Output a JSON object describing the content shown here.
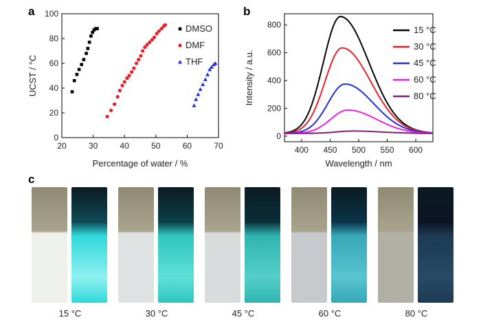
{
  "panels": {
    "a": "a",
    "b": "b",
    "c": "c"
  },
  "chart_data": [
    {
      "panel": "a",
      "type": "scatter",
      "xlabel": "Percentage of water / %",
      "ylabel": "UCST / °C",
      "xlim": [
        20,
        70
      ],
      "ylim": [
        0,
        100
      ],
      "xticks": [
        20,
        30,
        40,
        50,
        60,
        70
      ],
      "yticks": [
        0,
        20,
        40,
        60,
        80,
        100
      ],
      "legend_position": "top-right",
      "series": [
        {
          "name": "DMSO",
          "marker": "square",
          "color": "#000000",
          "points": [
            [
              23.3,
              37
            ],
            [
              24,
              46
            ],
            [
              24.8,
              51
            ],
            [
              25.5,
              55
            ],
            [
              26.3,
              59
            ],
            [
              27,
              63
            ],
            [
              27.8,
              68
            ],
            [
              28.3,
              72
            ],
            [
              28.8,
              77
            ],
            [
              29.3,
              82
            ],
            [
              29.8,
              85
            ],
            [
              30.3,
              87
            ],
            [
              30.8,
              88
            ],
            [
              31.3,
              88
            ]
          ]
        },
        {
          "name": "DMF",
          "marker": "circle",
          "color": "#e8202a",
          "points": [
            [
              34.5,
              17
            ],
            [
              35.7,
              22
            ],
            [
              36.8,
              27
            ],
            [
              37.8,
              33
            ],
            [
              38.5,
              38
            ],
            [
              39.3,
              42
            ],
            [
              40,
              45
            ],
            [
              40.8,
              48
            ],
            [
              41.5,
              50
            ],
            [
              42.3,
              53
            ],
            [
              43,
              56
            ],
            [
              43.8,
              60
            ],
            [
              44.5,
              63
            ],
            [
              45.2,
              66
            ],
            [
              45.8,
              70
            ],
            [
              46.5,
              73
            ],
            [
              47.2,
              75
            ],
            [
              48,
              77
            ],
            [
              48.8,
              79
            ],
            [
              49.5,
              81
            ],
            [
              50.3,
              84
            ],
            [
              51,
              86
            ],
            [
              51.8,
              88
            ],
            [
              52.5,
              90
            ],
            [
              53,
              91
            ]
          ]
        },
        {
          "name": "THF",
          "marker": "triangle",
          "color": "#1f2fd6",
          "points": [
            [
              62.2,
              26
            ],
            [
              62.8,
              31
            ],
            [
              63.5,
              35
            ],
            [
              64.2,
              39
            ],
            [
              65,
              43
            ],
            [
              65.8,
              47
            ],
            [
              66.5,
              51
            ],
            [
              67.2,
              55
            ],
            [
              67.8,
              57
            ],
            [
              68.5,
              59
            ],
            [
              69,
              60
            ]
          ]
        }
      ]
    },
    {
      "panel": "b",
      "type": "line",
      "xlabel": "Wavelength / nm",
      "ylabel": "Intensity / a.u.",
      "xlim": [
        370,
        630
      ],
      "ylim": [
        -40,
        880
      ],
      "xticks": [
        400,
        450,
        500,
        550,
        600
      ],
      "yticks": [
        0,
        200,
        400,
        600,
        800
      ],
      "legend_position": "top-right",
      "series": [
        {
          "name": "15 °C",
          "color": "#000000",
          "peak_x": 468,
          "peak_y": 860,
          "baseline": 20
        },
        {
          "name": "30 °C",
          "color": "#e8202a",
          "peak_x": 471,
          "peak_y": 635,
          "baseline": 20
        },
        {
          "name": "45 °C",
          "color": "#1f2fd6",
          "peak_x": 476,
          "peak_y": 375,
          "baseline": 20
        },
        {
          "name": "60 °C",
          "color": "#ee1ee8",
          "peak_x": 481,
          "peak_y": 188,
          "baseline": 20
        },
        {
          "name": "80 °C",
          "color": "#7a1f7a",
          "peak_x": 490,
          "peak_y": 37,
          "baseline": 20
        }
      ]
    }
  ],
  "photos": [
    {
      "label": "15 °C",
      "ambient_liquid": "#eef0ec",
      "uv_liquid": "#30d8da",
      "uv_glow": "#8ff0f0",
      "uv_head": "#0d4a55"
    },
    {
      "label": "30 °C",
      "ambient_liquid": "#dfe2e2",
      "uv_liquid": "#2fc6c0",
      "uv_glow": "#5fe0d8",
      "uv_head": "#0b3f47"
    },
    {
      "label": "45 °C",
      "ambient_liquid": "#d8dcdc",
      "uv_liquid": "#2fb4b0",
      "uv_glow": "#55cfc8",
      "uv_head": "#0a2f3a"
    },
    {
      "label": "60 °C",
      "ambient_liquid": "#c6cacc",
      "uv_liquid": "#36a8b8",
      "uv_glow": "#58c4cf",
      "uv_head": "#0a3348"
    },
    {
      "label": "80 °C",
      "ambient_liquid": "#b0b0a4",
      "uv_liquid": "#1d3a52",
      "uv_glow": "#274b66",
      "uv_head": "#0c1424"
    }
  ]
}
